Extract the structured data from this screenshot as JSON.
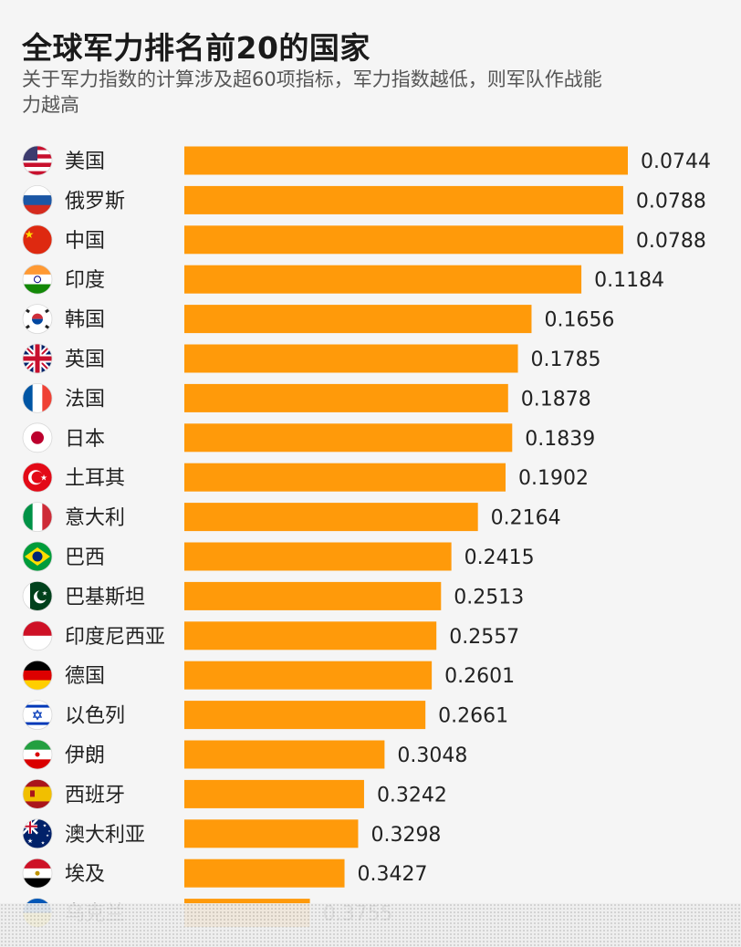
{
  "header": {
    "title": "全球军力排名前20的国家",
    "subtitle": "关于军力指数的计算涉及超60项指标，军力指数越低，则军队作战能力越高"
  },
  "colors": {
    "bar": "#ff9a0a",
    "text": "#222222",
    "background": "#f5f5f5"
  },
  "chart_data": {
    "type": "bar",
    "orientation": "horizontal",
    "categories": [
      "美国",
      "俄罗斯",
      "中国",
      "印度",
      "韩国",
      "英国",
      "法国",
      "日本",
      "土耳其",
      "意大利",
      "巴西",
      "巴基斯坦",
      "印度尼西亚",
      "德国",
      "以色列",
      "伊朗",
      "西班牙",
      "澳大利亚",
      "埃及",
      "乌克兰"
    ],
    "values": [
      0.0744,
      0.0788,
      0.0788,
      0.1184,
      0.1656,
      0.1785,
      0.1878,
      0.1839,
      0.1902,
      0.2164,
      0.2415,
      0.2513,
      0.2557,
      0.2601,
      0.2661,
      0.3048,
      0.3242,
      0.3298,
      0.3427,
      0.3755
    ],
    "value_labels": [
      "0.0744",
      "0.0788",
      "0.0788",
      "0.1184",
      "0.1656",
      "0.1785",
      "0.1878",
      "0.1839",
      "0.1902",
      "0.2164",
      "0.2415",
      "0.2513",
      "0.2557",
      "0.2601",
      "0.2661",
      "0.3048",
      "0.3242",
      "0.3298",
      "0.3427",
      "0.3755"
    ],
    "flag_icons": [
      "flag-usa-icon",
      "flag-russia-icon",
      "flag-china-icon",
      "flag-india-icon",
      "flag-south-korea-icon",
      "flag-uk-icon",
      "flag-france-icon",
      "flag-japan-icon",
      "flag-turkey-icon",
      "flag-italy-icon",
      "flag-brazil-icon",
      "flag-pakistan-icon",
      "flag-indonesia-icon",
      "flag-germany-icon",
      "flag-israel-icon",
      "flag-iran-icon",
      "flag-spain-icon",
      "flag-australia-icon",
      "flag-egypt-icon",
      "flag-ukraine-icon"
    ],
    "title": "全球军力排名前20的国家",
    "xlabel": "",
    "ylabel": ""
  }
}
